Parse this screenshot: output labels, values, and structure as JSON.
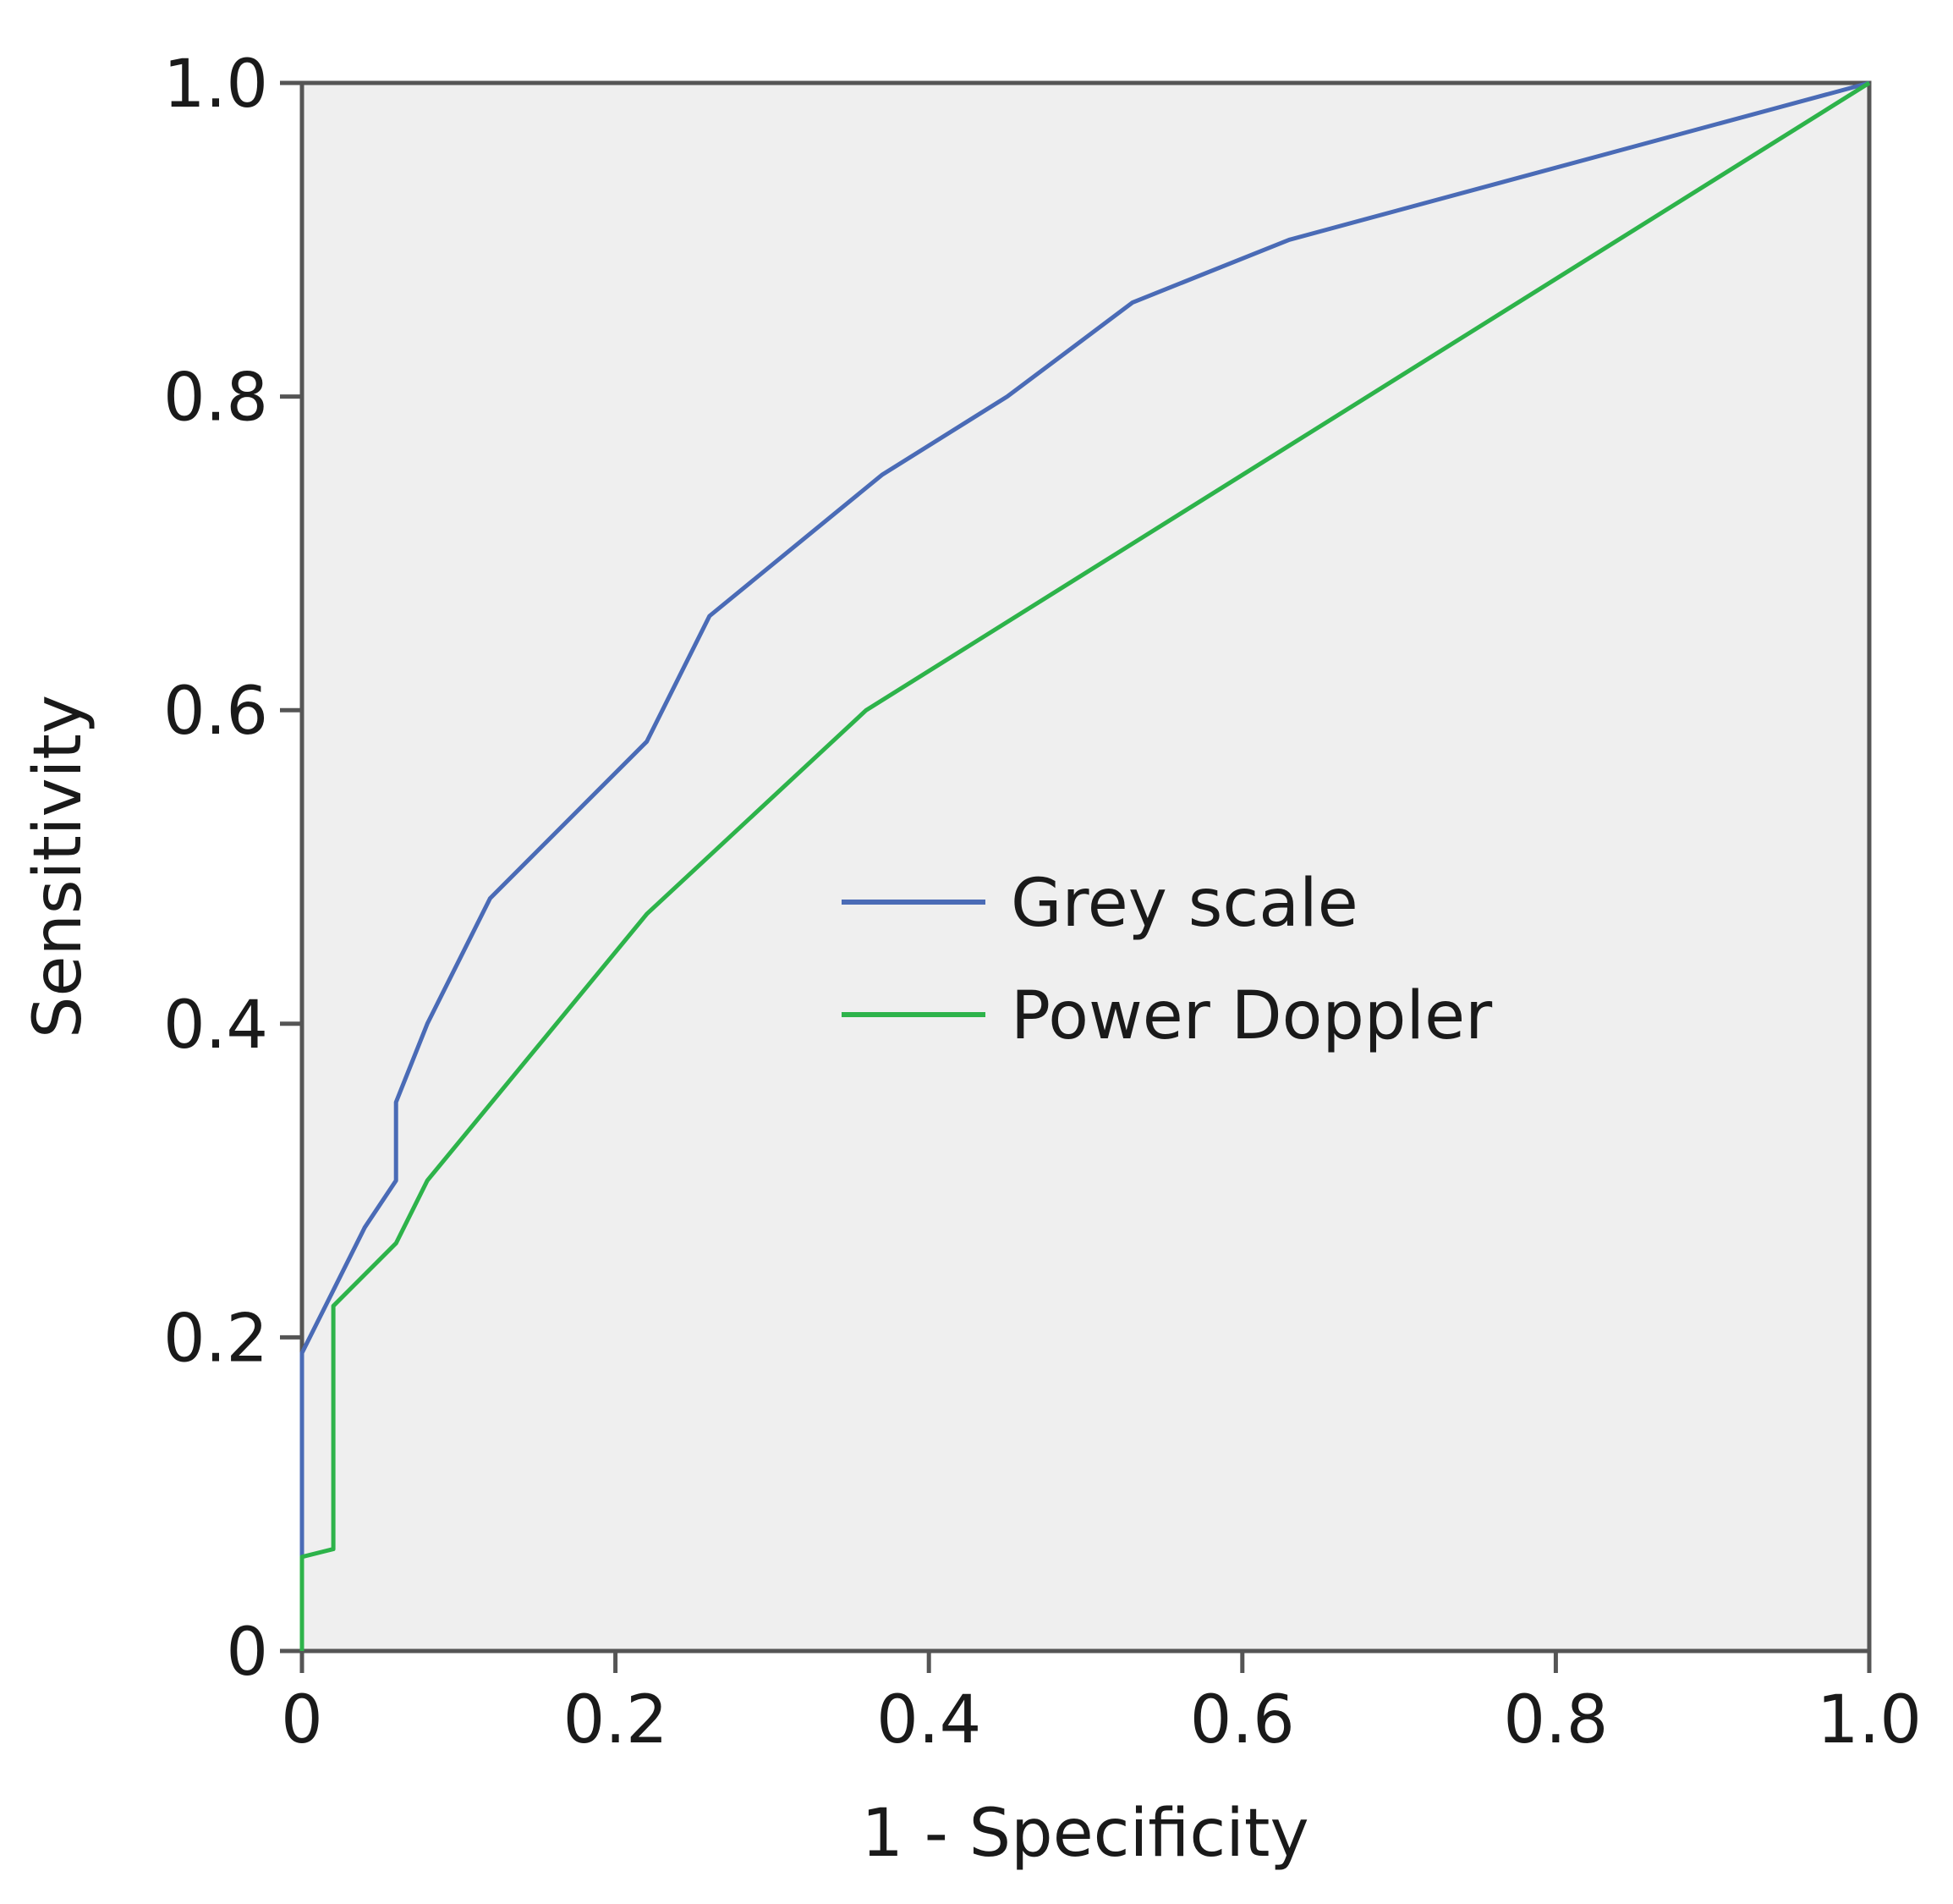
{
  "chart_data": {
    "type": "line",
    "xlabel": "1 - Specificity",
    "ylabel": "Sensitivity",
    "xlim": [
      0,
      1
    ],
    "ylim": [
      0,
      1
    ],
    "xticks": [
      "0",
      "0.2",
      "0.4",
      "0.6",
      "0.8",
      "1.0"
    ],
    "yticks": [
      "0",
      "0.2",
      "0.4",
      "0.6",
      "0.8",
      "1.0"
    ],
    "grid": false,
    "background": "#efefef",
    "legend_position": "center",
    "series": [
      {
        "name": "Grey scale",
        "color": "#4a6bb6",
        "x": [
          0,
          0,
          0.02,
          0.04,
          0.06,
          0.06,
          0.08,
          0.12,
          0.22,
          0.26,
          0.37,
          0.45,
          0.53,
          0.63,
          1.0
        ],
        "y": [
          0,
          0.19,
          0.23,
          0.27,
          0.3,
          0.35,
          0.4,
          0.48,
          0.58,
          0.66,
          0.75,
          0.8,
          0.86,
          0.9,
          1.0
        ]
      },
      {
        "name": "Power Doppler",
        "color": "#2db34a",
        "x": [
          0,
          0,
          0.02,
          0.02,
          0.06,
          0.08,
          0.22,
          0.36,
          1.0
        ],
        "y": [
          0,
          0.06,
          0.065,
          0.22,
          0.26,
          0.3,
          0.47,
          0.6,
          1.0
        ]
      }
    ]
  }
}
